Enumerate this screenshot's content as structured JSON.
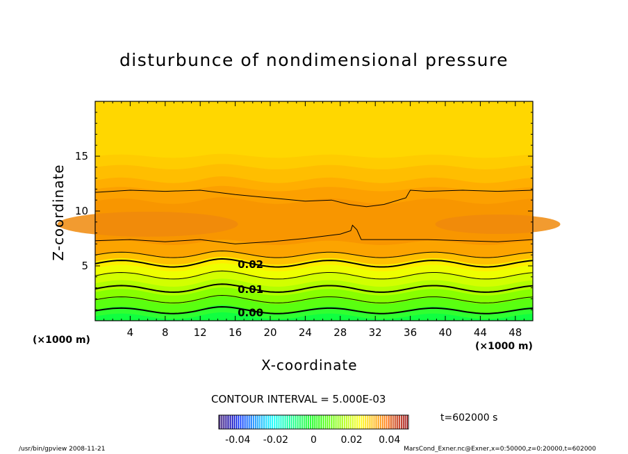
{
  "chart_data": {
    "type": "heatmap",
    "title": "disturbunce of nondimensional pressure",
    "xlabel": "X-coordinate",
    "ylabel": "Z-coordinate",
    "x_unit": "(×1000 m)",
    "xlim": [
      0,
      50
    ],
    "ylim": [
      0,
      20
    ],
    "x_ticks": [
      "4",
      "8",
      "12",
      "16",
      "20",
      "24",
      "28",
      "32",
      "36",
      "40",
      "44",
      "48"
    ],
    "y_ticks": [
      "5",
      "10",
      "15"
    ],
    "contour_interval": "CONTOUR INTERVAL = 5.000E-03",
    "contour_labels": [
      {
        "text": "0.02",
        "x": 16.2,
        "z": 5.2
      },
      {
        "text": "0.01",
        "x": 16.2,
        "z": 2.9
      },
      {
        "text": "0.00",
        "x": 16.2,
        "z": 0.8
      }
    ],
    "colorbar": {
      "ticks": [
        "-0.04",
        "-0.02",
        "0",
        "0.02",
        "0.04"
      ],
      "tick_values": [
        -0.04,
        -0.02,
        0,
        0.02,
        0.04
      ],
      "range": [
        -0.05,
        0.05
      ]
    },
    "time": "t=602000 s",
    "footer_left": "/usr/bin/gpview   2008-11-21",
    "footer_right": "MarsCond_Exner.nc@Exner,x=0:50000,z=0:20000,t=602000",
    "grid": false,
    "colors": {
      "lowest_band": "#00ff40",
      "mid_band": "#ffff00",
      "peak_band": "#f08a0c",
      "top_band": "#ffd700"
    }
  }
}
